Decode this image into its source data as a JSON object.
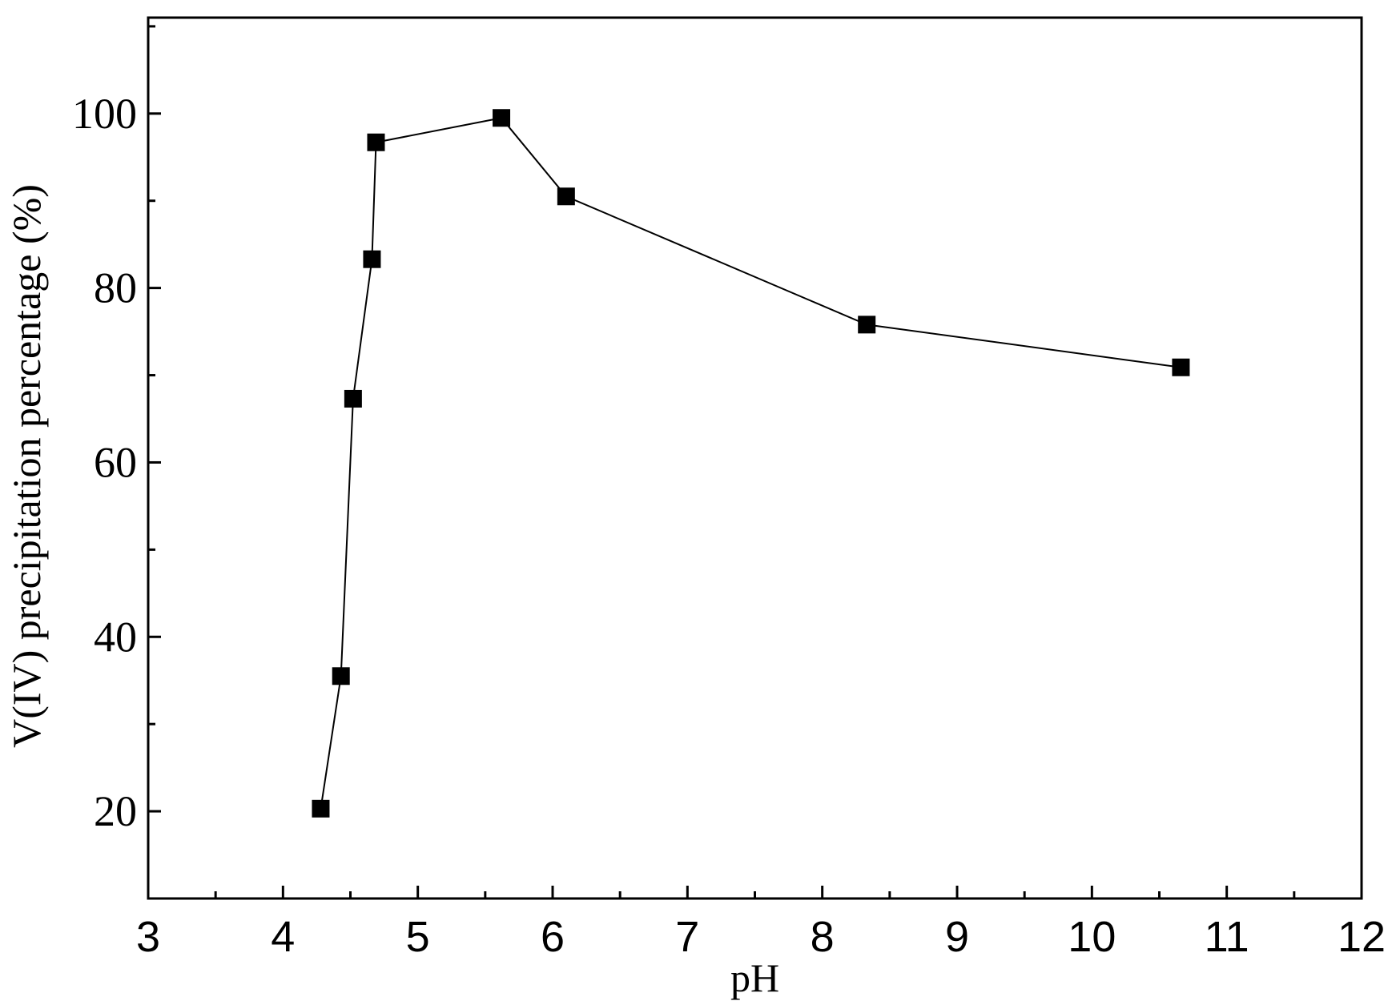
{
  "chart_data": {
    "type": "line",
    "title": "",
    "xlabel": "pH",
    "ylabel": "V(IV) precipitation percentage (%)",
    "xlim": [
      3,
      12
    ],
    "ylim": [
      10,
      111
    ],
    "x_ticks": [
      3,
      4,
      5,
      6,
      7,
      8,
      9,
      10,
      11,
      12
    ],
    "x_tick_labels": [
      "3",
      "4",
      "5",
      "6",
      "7",
      "8",
      "9",
      "10",
      "11",
      "12"
    ],
    "y_ticks": [
      20,
      40,
      60,
      80,
      100
    ],
    "y_tick_labels": [
      "20",
      "40",
      "60",
      "80",
      "100"
    ],
    "grid": false,
    "legend": "none",
    "series": [
      {
        "marker": "square",
        "color": "#000000",
        "points": [
          {
            "x": 4.28,
            "y": 20.3
          },
          {
            "x": 4.43,
            "y": 35.5
          },
          {
            "x": 4.52,
            "y": 67.3
          },
          {
            "x": 4.66,
            "y": 83.3
          },
          {
            "x": 4.69,
            "y": 96.7
          },
          {
            "x": 5.62,
            "y": 99.5
          },
          {
            "x": 6.1,
            "y": 90.5
          },
          {
            "x": 8.33,
            "y": 75.8
          },
          {
            "x": 10.66,
            "y": 70.9
          }
        ]
      }
    ]
  }
}
